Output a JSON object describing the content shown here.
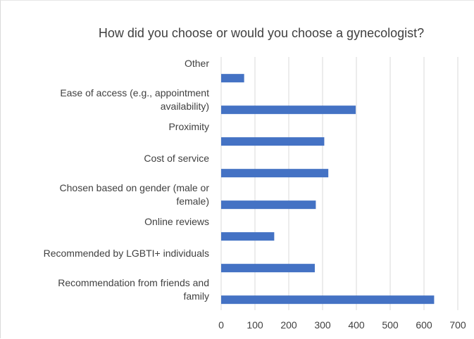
{
  "chart_data": {
    "type": "bar",
    "orientation": "horizontal",
    "title": "How did you choose or would you choose a gynecologist?",
    "xlabel": "",
    "ylabel": "",
    "categories": [
      [
        "Other"
      ],
      [
        "Ease of access (e.g., appointment",
        "availability)"
      ],
      [
        "Proximity"
      ],
      [
        "Cost of service"
      ],
      [
        "Chosen based on gender (male or",
        "female)"
      ],
      [
        "Online reviews"
      ],
      [
        "Recommended by LGBTI+ individuals"
      ],
      [
        "Recommendation from friends and",
        "family"
      ]
    ],
    "values": [
      68,
      398,
      305,
      317,
      280,
      157,
      277,
      630
    ],
    "xlim": [
      0,
      700
    ],
    "xticks": [
      0,
      100,
      200,
      300,
      400,
      500,
      600,
      700
    ],
    "grid": true,
    "legend": "none",
    "bar_color": "#4472c4",
    "grid_color": "#d9d9d9"
  }
}
